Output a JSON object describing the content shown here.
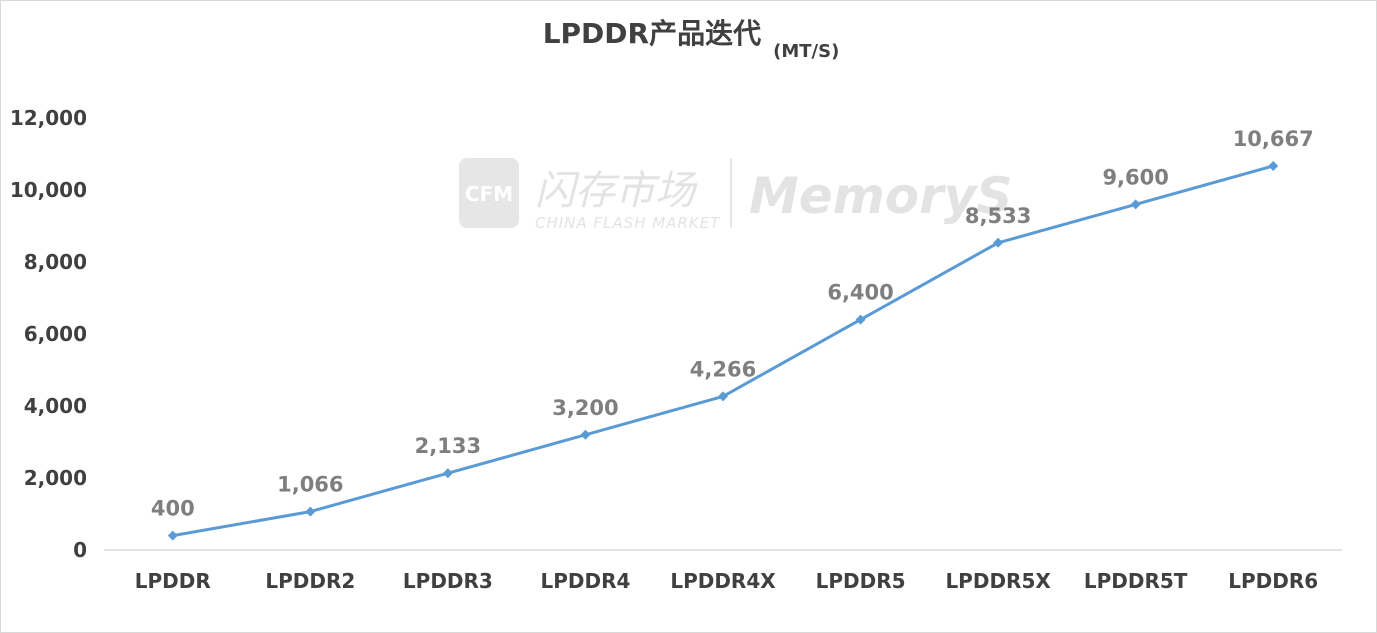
{
  "chart_data": {
    "type": "line",
    "title": "LPDDR产品迭代",
    "subtitle": "(MT/S)",
    "categories": [
      "LPDDR",
      "LPDDR2",
      "LPDDR3",
      "LPDDR4",
      "LPDDR4X",
      "LPDDR5",
      "LPDDR5X",
      "LPDDR5T",
      "LPDDR6"
    ],
    "values": [
      400,
      1066,
      2133,
      3200,
      4266,
      6400,
      8533,
      9600,
      10667
    ],
    "value_labels": [
      "400",
      "1,066",
      "2,133",
      "3,200",
      "4,266",
      "6,400",
      "8,533",
      "9,600",
      "10,667"
    ],
    "ylim": [
      0,
      12000
    ],
    "y_ticks": [
      "0",
      "2,000",
      "4,000",
      "6,000",
      "8,000",
      "10,000",
      "12,000"
    ],
    "grid": false,
    "legend": "none",
    "line_color": "#5b9bd5"
  },
  "watermark": {
    "logo_text": "CFM",
    "cn_text": "闪存市场",
    "en_text": "CHINA FLASH MARKET",
    "brand_text": "MemoryS",
    "icon": "cfm-logo-icon"
  }
}
